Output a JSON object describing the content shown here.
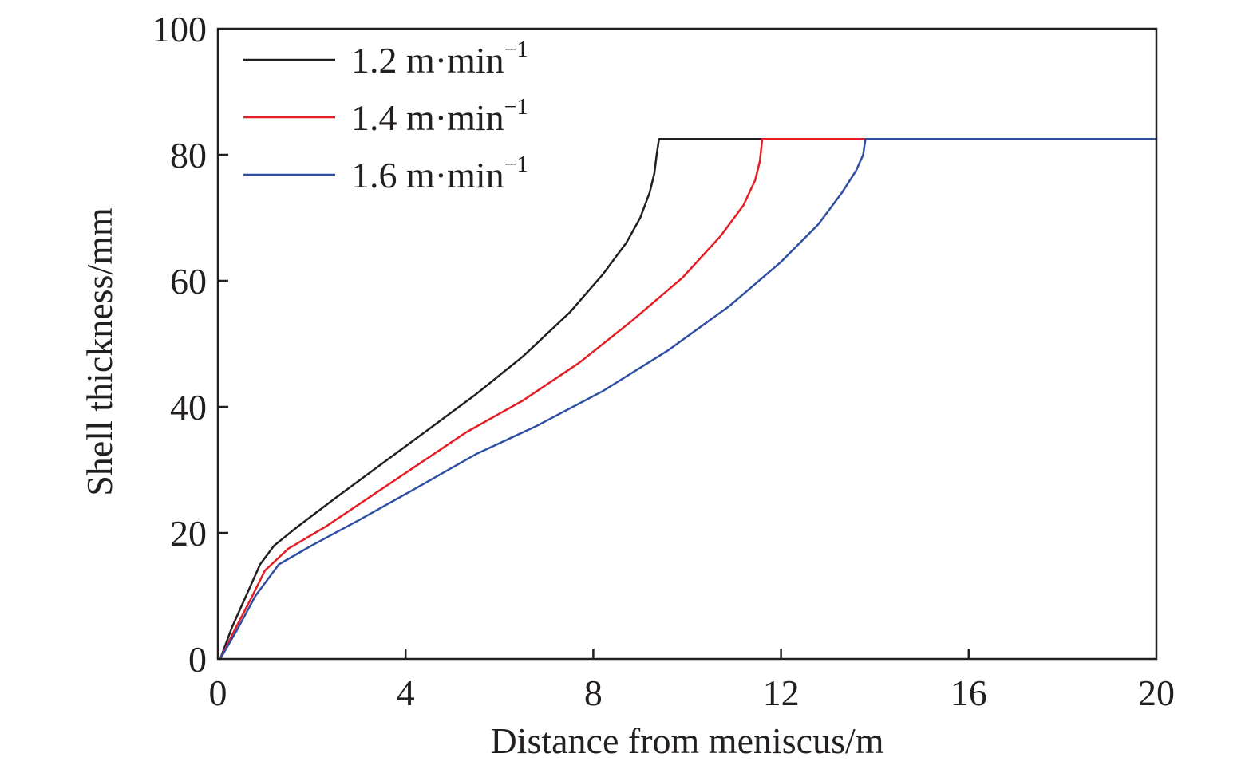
{
  "chart_data": {
    "type": "line",
    "xlabel": "Distance from meniscus/m",
    "ylabel": "Shell thickness/mm",
    "xlim": [
      0,
      20
    ],
    "ylim": [
      0,
      100
    ],
    "xticks": [
      "0",
      "4",
      "8",
      "12",
      "16",
      "20"
    ],
    "yticks": [
      "0",
      "20",
      "40",
      "60",
      "80",
      "100"
    ],
    "grid": false,
    "legend_position": "top-left",
    "legend_unit": "m·min",
    "legend_exponent": "−1",
    "series": [
      {
        "name": "1.2",
        "color": "#231f20",
        "x": [
          0.05,
          0.3,
          0.6,
          0.9,
          1.2,
          1.7,
          2.5,
          3.5,
          4.5,
          5.5,
          6.5,
          7.5,
          8.2,
          8.7,
          9.0,
          9.2,
          9.3,
          9.35,
          9.4,
          20
        ],
        "y": [
          0,
          5,
          10,
          15,
          18,
          21,
          25.5,
          31,
          36.5,
          42,
          48,
          55,
          61,
          66,
          70,
          74,
          77,
          80,
          82.5,
          82.5
        ]
      },
      {
        "name": "1.4",
        "color": "#e31e24",
        "x": [
          0.05,
          0.35,
          0.7,
          1.0,
          1.5,
          2.3,
          3.3,
          4.3,
          5.3,
          6.5,
          7.7,
          8.8,
          9.9,
          10.7,
          11.2,
          11.45,
          11.55,
          11.6,
          20
        ],
        "y": [
          0,
          4.5,
          9.5,
          14,
          17.5,
          21,
          26,
          31,
          36,
          41,
          47,
          53.5,
          60.5,
          67,
          72,
          76,
          79,
          82.5,
          82.5
        ]
      },
      {
        "name": "1.6",
        "color": "#2e4fa3",
        "x": [
          0.05,
          0.4,
          0.8,
          1.3,
          2.0,
          3.0,
          4.2,
          5.5,
          6.8,
          8.2,
          9.6,
          10.9,
          12.0,
          12.8,
          13.3,
          13.6,
          13.75,
          13.8,
          20
        ],
        "y": [
          0,
          4.5,
          10,
          15,
          18,
          22,
          27,
          32.5,
          37,
          42.5,
          49,
          56,
          63,
          69,
          74,
          77.5,
          80,
          82.5,
          82.5
        ]
      }
    ]
  }
}
